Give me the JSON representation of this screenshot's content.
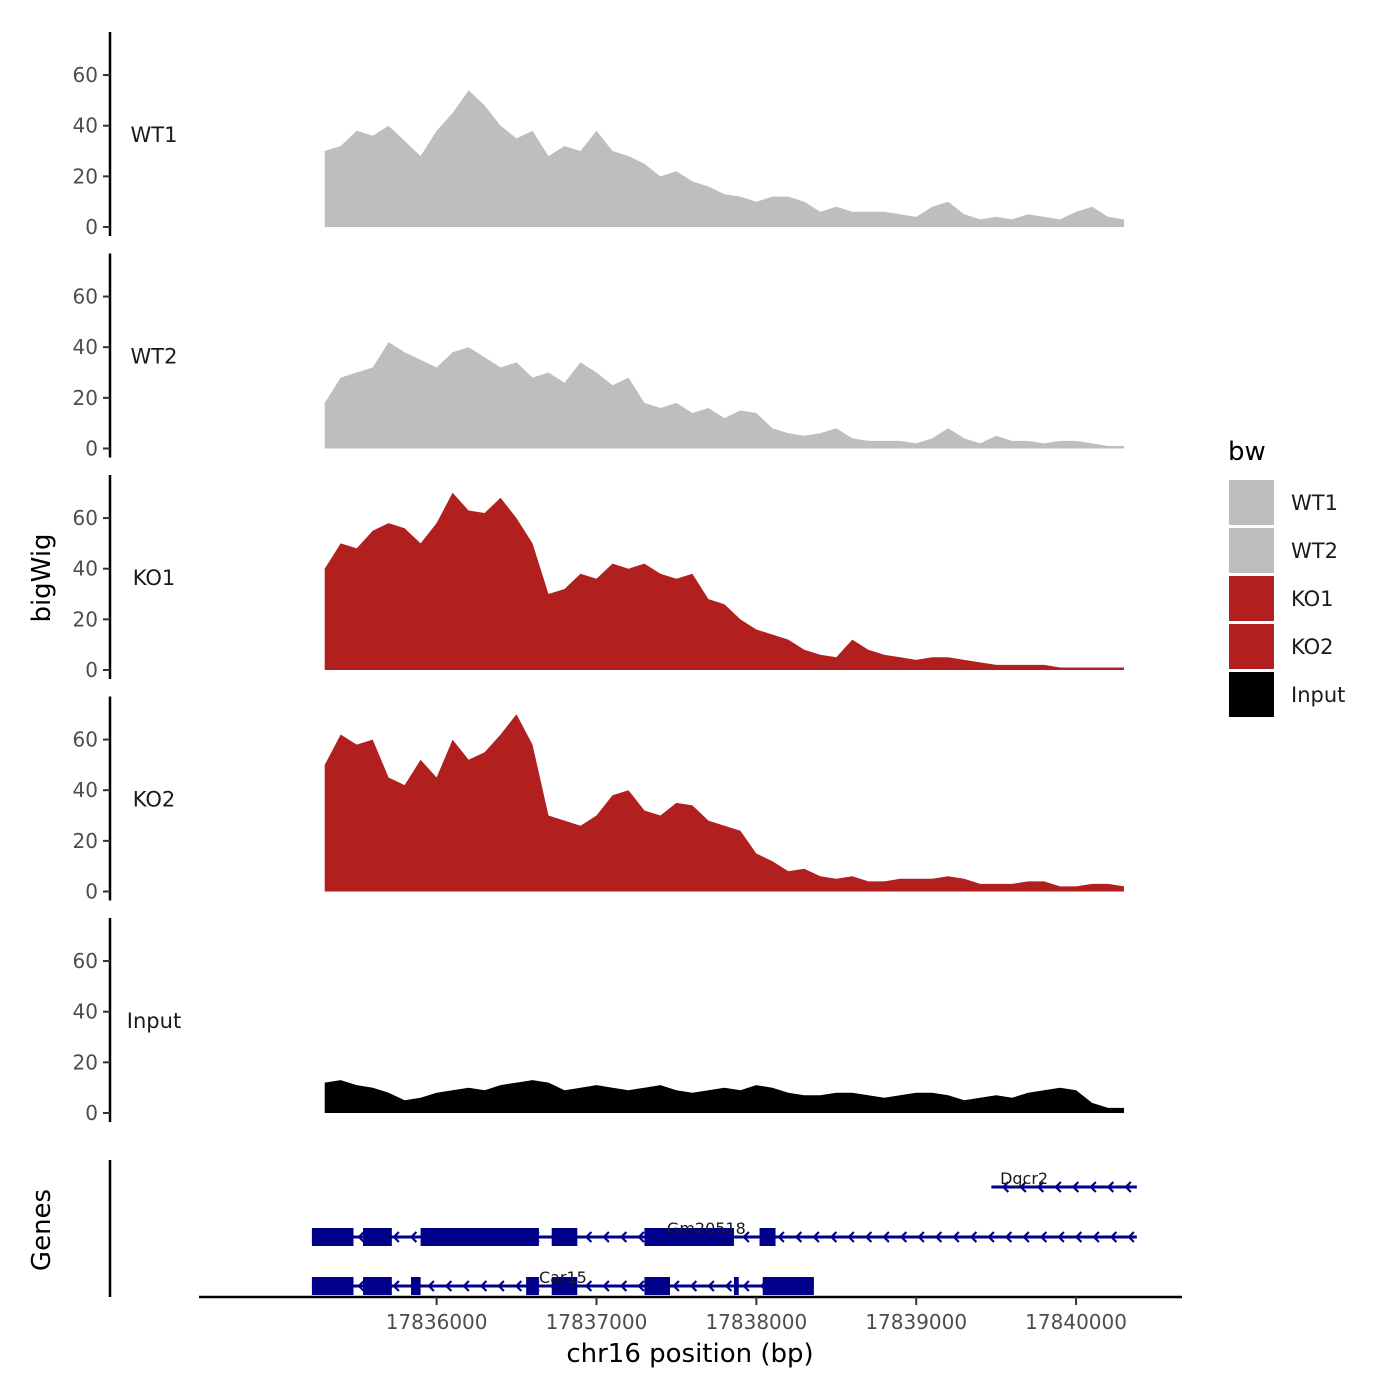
{
  "chart_data": {
    "type": "area",
    "title": "",
    "ylabel": "bigWig",
    "xlabel": "chr16 position (bp)",
    "ylim": [
      0,
      77
    ],
    "xlim": [
      17834520,
      17840650
    ],
    "y_ticks": [
      0,
      20,
      40,
      60
    ],
    "y_tick_labels": [
      "0",
      "20",
      "40",
      "60"
    ],
    "x_ticks": [
      17836000,
      17837000,
      17838000,
      17839000,
      17840000
    ],
    "x_tick_labels": [
      "17836000",
      "17837000",
      "17838000",
      "17839000",
      "17840000"
    ],
    "genes_axis_label": "Genes",
    "legend": {
      "title": "bw",
      "position": "right",
      "entries": [
        {
          "label": "WT1",
          "color": "#bebebe"
        },
        {
          "label": "WT2",
          "color": "#bebebe"
        },
        {
          "label": "KO1",
          "color": "#b21f1f"
        },
        {
          "label": "KO2",
          "color": "#b21f1f"
        },
        {
          "label": "Input",
          "color": "#000000"
        }
      ]
    },
    "x": [
      17835300,
      17835400,
      17835500,
      17835600,
      17835700,
      17835800,
      17835900,
      17836000,
      17836100,
      17836200,
      17836300,
      17836400,
      17836500,
      17836600,
      17836700,
      17836800,
      17836900,
      17837000,
      17837100,
      17837200,
      17837300,
      17837400,
      17837500,
      17837600,
      17837700,
      17837800,
      17837900,
      17838000,
      17838100,
      17838200,
      17838300,
      17838400,
      17838500,
      17838600,
      17838700,
      17838800,
      17838900,
      17839000,
      17839100,
      17839200,
      17839300,
      17839400,
      17839500,
      17839600,
      17839700,
      17839800,
      17839900,
      17840000,
      17840100,
      17840200,
      17840300
    ],
    "series": [
      {
        "name": "WT1",
        "color": "#bebebe",
        "values": [
          30,
          32,
          38,
          36,
          40,
          34,
          28,
          38,
          45,
          54,
          48,
          40,
          35,
          38,
          28,
          32,
          30,
          38,
          30,
          28,
          25,
          20,
          22,
          18,
          16,
          13,
          12,
          10,
          12,
          12,
          10,
          6,
          8,
          6,
          6,
          6,
          5,
          4,
          8,
          10,
          5,
          3,
          4,
          3,
          5,
          4,
          3,
          6,
          8,
          4,
          3
        ]
      },
      {
        "name": "WT2",
        "color": "#bebebe",
        "values": [
          18,
          28,
          30,
          32,
          42,
          38,
          35,
          32,
          38,
          40,
          36,
          32,
          34,
          28,
          30,
          26,
          34,
          30,
          25,
          28,
          18,
          16,
          18,
          14,
          16,
          12,
          15,
          14,
          8,
          6,
          5,
          6,
          8,
          4,
          3,
          3,
          3,
          2,
          4,
          8,
          4,
          2,
          5,
          3,
          3,
          2,
          3,
          3,
          2,
          1,
          1
        ]
      },
      {
        "name": "KO1",
        "color": "#b21f1f",
        "values": [
          40,
          50,
          48,
          55,
          58,
          56,
          50,
          58,
          70,
          63,
          62,
          68,
          60,
          50,
          30,
          32,
          38,
          36,
          42,
          40,
          42,
          38,
          36,
          38,
          28,
          26,
          20,
          16,
          14,
          12,
          8,
          6,
          5,
          12,
          8,
          6,
          5,
          4,
          5,
          5,
          4,
          3,
          2,
          2,
          2,
          2,
          1,
          1,
          1,
          1,
          1
        ]
      },
      {
        "name": "KO2",
        "color": "#b21f1f",
        "values": [
          50,
          62,
          58,
          60,
          45,
          42,
          52,
          45,
          60,
          52,
          55,
          62,
          70,
          58,
          30,
          28,
          26,
          30,
          38,
          40,
          32,
          30,
          35,
          34,
          28,
          26,
          24,
          15,
          12,
          8,
          9,
          6,
          5,
          6,
          4,
          4,
          5,
          5,
          5,
          6,
          5,
          3,
          3,
          3,
          4,
          4,
          2,
          2,
          3,
          3,
          2
        ]
      },
      {
        "name": "Input",
        "color": "#000000",
        "values": [
          12,
          13,
          11,
          10,
          8,
          5,
          6,
          8,
          9,
          10,
          9,
          11,
          12,
          13,
          12,
          9,
          10,
          11,
          10,
          9,
          10,
          11,
          9,
          8,
          9,
          10,
          9,
          11,
          10,
          8,
          7,
          7,
          8,
          8,
          7,
          6,
          7,
          8,
          8,
          7,
          5,
          6,
          7,
          6,
          8,
          9,
          10,
          9,
          4,
          2,
          2
        ]
      }
    ],
    "genes": [
      {
        "name": "Dgcr2",
        "strand": "-",
        "start": 17839470,
        "end": 17840380,
        "exons": []
      },
      {
        "name": "Gm20518",
        "strand": "-",
        "start": 17835220,
        "end": 17840380,
        "exons": [
          [
            17835220,
            17835480
          ],
          [
            17835540,
            17835720
          ],
          [
            17835900,
            17836640
          ],
          [
            17836720,
            17836880
          ],
          [
            17837300,
            17837860
          ],
          [
            17838020,
            17838120
          ]
        ]
      },
      {
        "name": "Car15",
        "strand": "-",
        "start": 17835220,
        "end": 17838360,
        "exons": [
          [
            17835220,
            17835480
          ],
          [
            17835540,
            17835720
          ],
          [
            17835840,
            17835900
          ],
          [
            17836560,
            17836640
          ],
          [
            17836720,
            17836880
          ],
          [
            17837300,
            17837460
          ],
          [
            17837860,
            17837890
          ],
          [
            17838040,
            17838360
          ]
        ]
      }
    ]
  }
}
